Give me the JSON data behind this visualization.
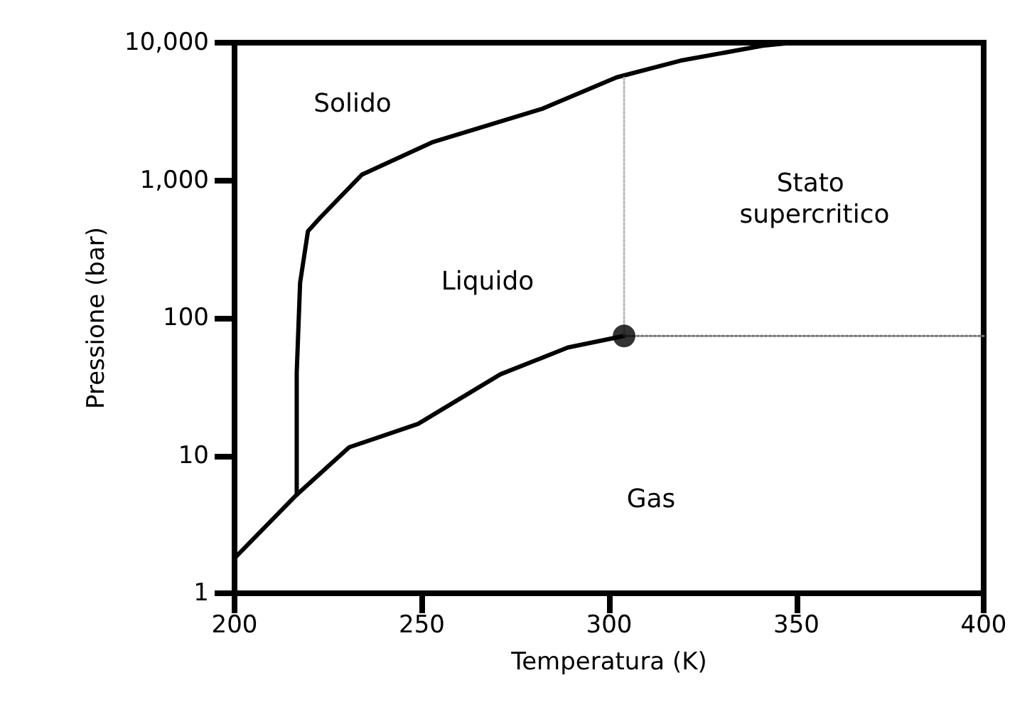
{
  "chart_data": {
    "type": "line",
    "xlabel": "Temperatura (K)",
    "ylabel": "Pressione (bar)",
    "xlim": [
      200,
      400
    ],
    "xticks": [
      200,
      250,
      300,
      350,
      400
    ],
    "ylim": [
      1,
      10000
    ],
    "yticks": [
      1,
      10,
      100,
      {
        "value": 1000,
        "label": "1,000"
      },
      {
        "value": 10000,
        "label": "10,000"
      }
    ],
    "log": "y",
    "grid": false,
    "marker": "none",
    "line_style": "solid",
    "series": [
      {
        "color": "#000000",
        "x": [
          200,
          216.6,
          230.6,
          249,
          271,
          289,
          304
        ],
        "values": [
          1.8,
          5.2,
          11.5,
          17,
          39,
          61,
          74
        ]
      },
      {
        "color": "#000000",
        "x": [
          216.6,
          216.6,
          217.5,
          219.6,
          223,
          234,
          253,
          282,
          302,
          319,
          341,
          349
        ],
        "values": [
          5.2,
          40,
          180,
          427,
          540,
          1100,
          1900,
          3300,
          5600,
          7400,
          9500,
          10000
        ]
      },
      {
        "color": "#bbbbbb",
        "line_style": "dotted",
        "x": [
          304,
          304
        ],
        "values": [
          74,
          5600
        ]
      },
      {
        "color": "#777777",
        "line_style": "dotted",
        "x": [
          304,
          400
        ],
        "values": [
          74,
          74
        ]
      },
      {
        "type": "scatter",
        "marker": "circle",
        "color": "#000000",
        "x": [
          304
        ],
        "values": [
          74
        ]
      }
    ],
    "annotations": [
      "Solido",
      "Liquido",
      "Stato supercritico",
      "Gas"
    ]
  }
}
